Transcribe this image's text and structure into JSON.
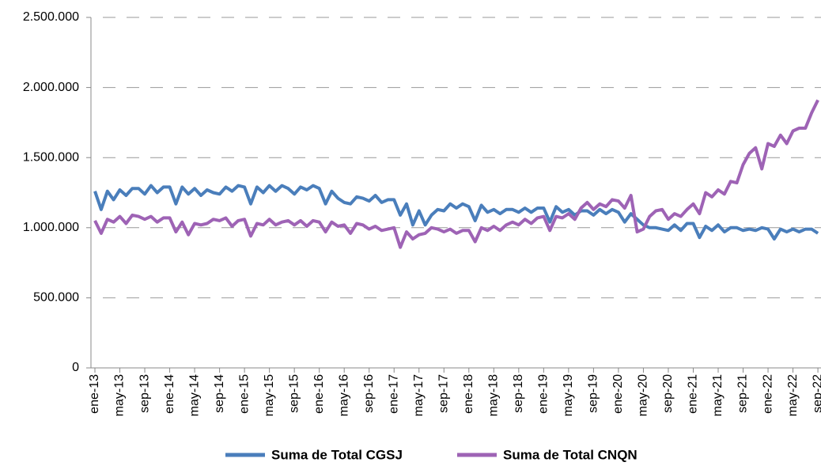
{
  "chart_data": {
    "type": "line",
    "categories": [
      "ene-13",
      null,
      null,
      null,
      "may-13",
      null,
      null,
      null,
      "sep-13",
      null,
      null,
      null,
      "ene-14",
      null,
      null,
      null,
      "may-14",
      null,
      null,
      null,
      "sep-14",
      null,
      null,
      null,
      "ene-15",
      null,
      null,
      null,
      "may-15",
      null,
      null,
      null,
      "sep-15",
      null,
      null,
      null,
      "ene-16",
      null,
      null,
      null,
      "may-16",
      null,
      null,
      null,
      "sep-16",
      null,
      null,
      null,
      "ene-17",
      null,
      null,
      null,
      "may-17",
      null,
      null,
      null,
      "sep-17",
      null,
      null,
      null,
      "ene-18",
      null,
      null,
      null,
      "may-18",
      null,
      null,
      null,
      "sep-18",
      null,
      null,
      null,
      "ene-19",
      null,
      null,
      null,
      "may-19",
      null,
      null,
      null,
      "sep-19",
      null,
      null,
      null,
      "ene-20",
      null,
      null,
      null,
      "may-20",
      null,
      null,
      null,
      "sep-20",
      null,
      null,
      null,
      "ene-21",
      null,
      null,
      null,
      "may-21",
      null,
      null,
      null,
      "sep-21",
      null,
      null,
      null,
      "ene-22",
      null,
      null,
      null,
      "may-22",
      null,
      null,
      null,
      "sep-22"
    ],
    "series": [
      {
        "name": "Suma de Total CGSJ",
        "color": "#4a7ebb",
        "values": [
          1260000,
          1130000,
          1260000,
          1200000,
          1270000,
          1230000,
          1280000,
          1280000,
          1240000,
          1300000,
          1250000,
          1290000,
          1290000,
          1170000,
          1290000,
          1240000,
          1280000,
          1230000,
          1270000,
          1250000,
          1240000,
          1290000,
          1260000,
          1300000,
          1290000,
          1170000,
          1290000,
          1250000,
          1300000,
          1260000,
          1300000,
          1280000,
          1240000,
          1290000,
          1270000,
          1300000,
          1280000,
          1170000,
          1260000,
          1210000,
          1180000,
          1170000,
          1220000,
          1210000,
          1190000,
          1230000,
          1180000,
          1200000,
          1200000,
          1090000,
          1170000,
          1020000,
          1120000,
          1020000,
          1090000,
          1130000,
          1120000,
          1170000,
          1140000,
          1170000,
          1150000,
          1050000,
          1160000,
          1110000,
          1130000,
          1100000,
          1130000,
          1130000,
          1110000,
          1140000,
          1110000,
          1140000,
          1140000,
          1040000,
          1150000,
          1110000,
          1130000,
          1090000,
          1120000,
          1120000,
          1090000,
          1130000,
          1100000,
          1130000,
          1110000,
          1040000,
          1100000,
          1060000,
          1020000,
          1000000,
          1000000,
          990000,
          980000,
          1020000,
          980000,
          1030000,
          1030000,
          930000,
          1010000,
          980000,
          1020000,
          970000,
          1000000,
          1000000,
          980000,
          990000,
          980000,
          1000000,
          990000,
          920000,
          990000,
          970000,
          990000,
          970000,
          990000,
          990000,
          960000
        ]
      },
      {
        "name": "Suma de Total CNQN",
        "color": "#9e63b5",
        "values": [
          1050000,
          960000,
          1060000,
          1040000,
          1080000,
          1030000,
          1090000,
          1080000,
          1060000,
          1080000,
          1040000,
          1070000,
          1070000,
          970000,
          1040000,
          950000,
          1030000,
          1020000,
          1030000,
          1060000,
          1050000,
          1070000,
          1010000,
          1050000,
          1060000,
          940000,
          1030000,
          1020000,
          1060000,
          1020000,
          1040000,
          1050000,
          1020000,
          1050000,
          1010000,
          1050000,
          1040000,
          970000,
          1040000,
          1010000,
          1020000,
          960000,
          1030000,
          1020000,
          990000,
          1010000,
          980000,
          990000,
          1000000,
          860000,
          970000,
          920000,
          950000,
          960000,
          1000000,
          990000,
          970000,
          990000,
          960000,
          980000,
          980000,
          900000,
          1000000,
          980000,
          1010000,
          980000,
          1020000,
          1040000,
          1020000,
          1060000,
          1030000,
          1070000,
          1080000,
          980000,
          1080000,
          1070000,
          1100000,
          1060000,
          1140000,
          1180000,
          1130000,
          1170000,
          1150000,
          1200000,
          1190000,
          1140000,
          1230000,
          970000,
          990000,
          1080000,
          1120000,
          1130000,
          1060000,
          1100000,
          1080000,
          1130000,
          1170000,
          1100000,
          1250000,
          1220000,
          1270000,
          1240000,
          1330000,
          1320000,
          1450000,
          1530000,
          1570000,
          1420000,
          1600000,
          1580000,
          1660000,
          1600000,
          1690000,
          1710000,
          1710000,
          1820000,
          1910000
        ]
      }
    ],
    "ylim": [
      0,
      2500000
    ],
    "yticks": [
      0,
      {
        "value": 500000,
        "label": "500.000"
      },
      {
        "value": 1000000,
        "label": "1.000.000"
      },
      {
        "value": 1500000,
        "label": "1.500.000"
      },
      {
        "value": 2000000,
        "label": "2.000.000"
      },
      {
        "value": 2500000,
        "label": "2.500.000"
      }
    ],
    "grid": true,
    "legend": "bottom"
  }
}
